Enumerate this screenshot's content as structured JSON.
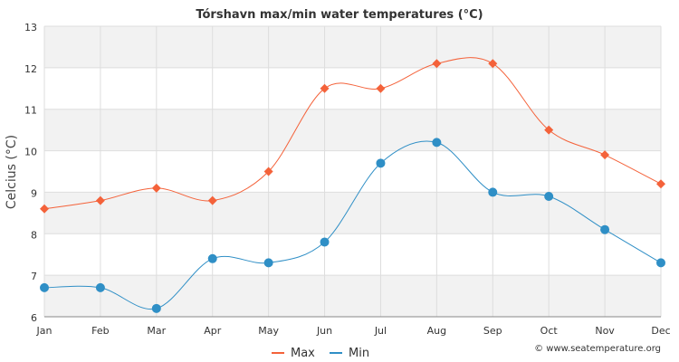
{
  "chart_data": {
    "type": "line",
    "title": "Tórshavn max/min water temperatures (°C)",
    "ylabel": "Celcius (°C)",
    "xlabel": "",
    "categories": [
      "Jan",
      "Feb",
      "Mar",
      "Apr",
      "May",
      "Jun",
      "Jul",
      "Aug",
      "Sep",
      "Oct",
      "Nov",
      "Dec"
    ],
    "ylim": [
      6,
      13
    ],
    "yticks": [
      6,
      7,
      8,
      9,
      10,
      11,
      12,
      13
    ],
    "series": [
      {
        "name": "Max",
        "color": "#f4623a",
        "marker": "diamond",
        "values": [
          8.6,
          8.8,
          9.1,
          8.8,
          9.5,
          11.5,
          11.5,
          12.1,
          12.1,
          10.5,
          9.9,
          9.2
        ]
      },
      {
        "name": "Min",
        "color": "#2f8fc6",
        "marker": "circle",
        "values": [
          6.7,
          6.7,
          6.2,
          7.4,
          7.3,
          7.8,
          9.7,
          10.2,
          9.0,
          8.9,
          8.1,
          7.3
        ]
      }
    ],
    "grid": true,
    "legend_position": "bottom-center"
  },
  "credit": "© www.seatemperature.org"
}
